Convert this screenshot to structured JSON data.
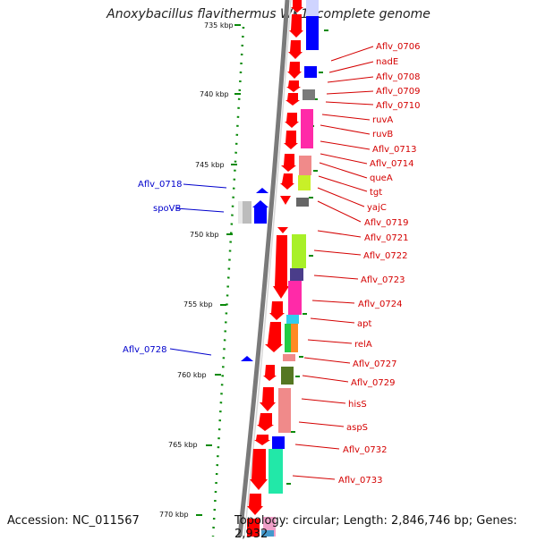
{
  "title": "Anoxybacillus flavithermus WK1, complete genome",
  "footer": {
    "accession": "Accession: NC_011567",
    "summary": "Topology: circular; Length: 2,846,746 bp; Genes: 2,932"
  },
  "ruler": {
    "ticks": [
      "735 kbp",
      "740 kbp",
      "745 kbp",
      "750 kbp",
      "755 kbp",
      "760 kbp",
      "765 kbp",
      "770 kbp"
    ]
  },
  "labels_right": [
    "Aflv_0706",
    "nadE",
    "Aflv_0708",
    "Aflv_0709",
    "Aflv_0710",
    "ruvA",
    "ruvB",
    "Aflv_0713",
    "Aflv_0714",
    "queA",
    "tgt",
    "yajC",
    "Aflv_0719",
    "Aflv_0721",
    "Aflv_0722",
    "Aflv_0723",
    "Aflv_0724",
    "apt",
    "relA",
    "Aflv_0727",
    "Aflv_0729",
    "hisS",
    "aspS",
    "Aflv_0732",
    "Aflv_0733"
  ],
  "labels_left": [
    "Aflv_0718",
    "spoVB",
    "Aflv_0728"
  ],
  "colors": {
    "forward_gene": "#ff0000",
    "reverse_gene": "#0000ff",
    "backbone": "#888888",
    "label_red": "#d40000",
    "label_blue": "#0000cc",
    "tick": "#008000"
  }
}
